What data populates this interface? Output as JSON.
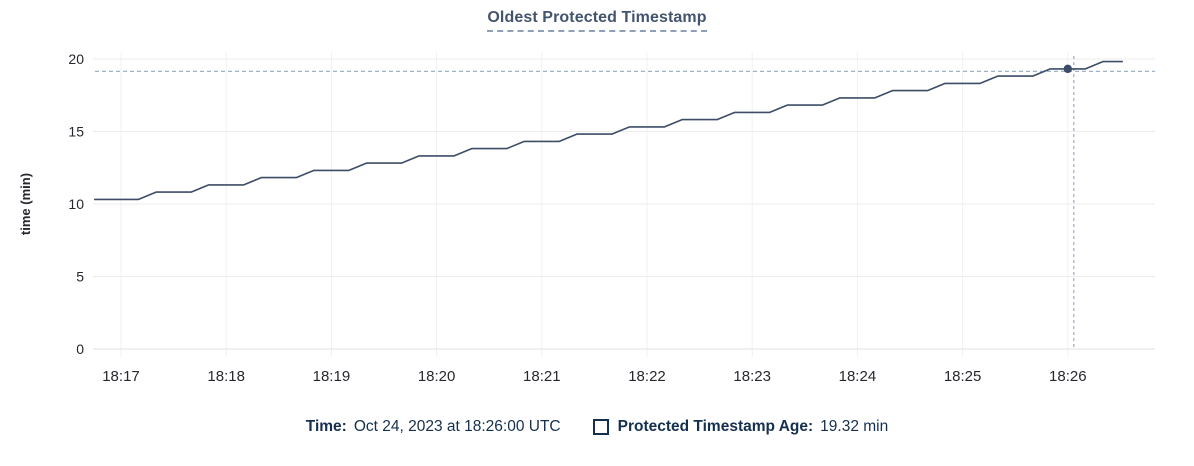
{
  "header": {
    "title": "Oldest Protected Timestamp"
  },
  "legend": {
    "time_label": "Time:",
    "time_value": "Oct 24, 2023 at 18:26:00 UTC",
    "series_label": "Protected Timestamp Age:",
    "series_value": "19.32 min"
  },
  "colors": {
    "line": "#3d4d68",
    "dot": "#3d4d68",
    "crosshair": "#9fb3c8",
    "grid": "#ececec",
    "grid_vertical": "#f1f1f1",
    "grid_zero": "#e0e0e0",
    "axis_text": "#25282e",
    "title": "#44546e",
    "title_underline": "#8ea0b7",
    "legend_text": "#14304e"
  },
  "chart_data": {
    "type": "line",
    "title": "Oldest Protected Timestamp",
    "xlabel": "",
    "ylabel": "time (min)",
    "ylim": [
      0,
      20
    ],
    "y_ticks": [
      0,
      5,
      10,
      15,
      20
    ],
    "x_ticks": [
      {
        "t": 0,
        "label": "18:17"
      },
      {
        "t": 60,
        "label": "18:18"
      },
      {
        "t": 120,
        "label": "18:19"
      },
      {
        "t": 180,
        "label": "18:20"
      },
      {
        "t": 240,
        "label": "18:21"
      },
      {
        "t": 300,
        "label": "18:22"
      },
      {
        "t": 360,
        "label": "18:23"
      },
      {
        "t": 420,
        "label": "18:24"
      },
      {
        "t": 480,
        "label": "18:25"
      },
      {
        "t": 540,
        "label": "18:26"
      }
    ],
    "x_domain_seconds_from_1817": [
      -15,
      590
    ],
    "grid": true,
    "legend_position": "bottom",
    "series": [
      {
        "name": "Protected Timestamp Age",
        "unit": "min",
        "points": [
          [
            -15,
            10.32
          ],
          [
            10,
            10.32
          ],
          [
            20,
            10.82
          ],
          [
            40,
            10.82
          ],
          [
            50,
            11.32
          ],
          [
            70,
            11.32
          ],
          [
            80,
            11.82
          ],
          [
            100,
            11.82
          ],
          [
            110,
            12.32
          ],
          [
            130,
            12.32
          ],
          [
            140,
            12.82
          ],
          [
            160,
            12.82
          ],
          [
            170,
            13.32
          ],
          [
            190,
            13.32
          ],
          [
            200,
            13.82
          ],
          [
            220,
            13.82
          ],
          [
            230,
            14.32
          ],
          [
            250,
            14.32
          ],
          [
            260,
            14.82
          ],
          [
            280,
            14.82
          ],
          [
            290,
            15.32
          ],
          [
            310,
            15.32
          ],
          [
            320,
            15.82
          ],
          [
            340,
            15.82
          ],
          [
            350,
            16.32
          ],
          [
            370,
            16.32
          ],
          [
            380,
            16.82
          ],
          [
            400,
            16.82
          ],
          [
            410,
            17.32
          ],
          [
            430,
            17.32
          ],
          [
            440,
            17.82
          ],
          [
            460,
            17.82
          ],
          [
            470,
            18.32
          ],
          [
            490,
            18.32
          ],
          [
            500,
            18.82
          ],
          [
            520,
            18.82
          ],
          [
            530,
            19.32
          ],
          [
            550,
            19.32
          ],
          [
            560,
            19.82
          ],
          [
            571,
            19.82
          ]
        ]
      }
    ],
    "crosshair": {
      "t": 540,
      "value": 19.32,
      "time": "Oct 24, 2023 at 18:26:00 UTC",
      "series": "Protected Timestamp Age",
      "display": "19.32 min"
    }
  }
}
